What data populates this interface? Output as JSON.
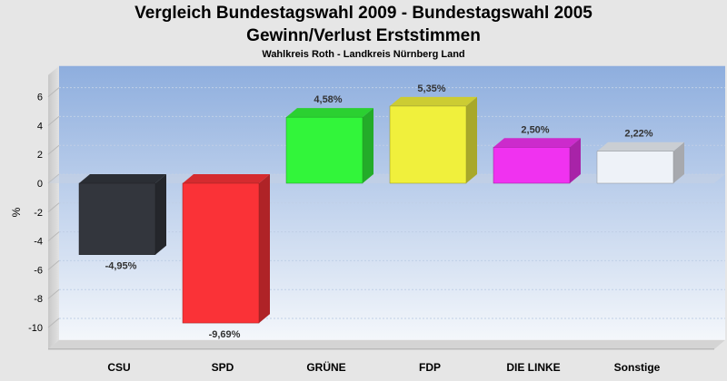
{
  "chart_data": {
    "type": "bar",
    "title": "Vergleich Bundestagswahl 2009 - Bundestagswahl 2005",
    "subtitle": "Gewinn/Verlust Erststimmen",
    "subsubtitle": "Wahlkreis Roth - Landkreis Nürnberg Land",
    "ylabel": "%",
    "xlabel": "",
    "ylim": [
      -11.5,
      7.5
    ],
    "yticks": [
      6,
      4,
      2,
      0,
      -2,
      -4,
      -6,
      -8,
      -10
    ],
    "categories": [
      "CSU",
      "SPD",
      "GRÜNE",
      "FDP",
      "DIE LINKE",
      "Sonstige"
    ],
    "values": [
      -4.95,
      -9.69,
      4.58,
      5.35,
      2.5,
      2.22
    ],
    "value_labels": [
      "-4,95%",
      "-9,69%",
      "4,58%",
      "5,35%",
      "2,50%",
      "2,22%"
    ],
    "colors": [
      "#33363d",
      "#fa3237",
      "#32f53a",
      "#f0f03c",
      "#f032f0",
      "#eef2f8"
    ],
    "grid": true,
    "legend": "none"
  }
}
